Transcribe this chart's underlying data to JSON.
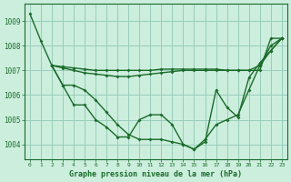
{
  "title": "Graphe pression niveau de la mer (hPa)",
  "background_color": "#cceedd",
  "grid_color": "#99ccbb",
  "line_color": "#1a6b2a",
  "xlim": [
    -0.5,
    23.5
  ],
  "ylim": [
    1003.4,
    1009.7
  ],
  "yticks": [
    1004,
    1005,
    1006,
    1007,
    1008,
    1009
  ],
  "xticks": [
    0,
    1,
    2,
    3,
    4,
    5,
    6,
    7,
    8,
    9,
    10,
    11,
    12,
    13,
    14,
    15,
    16,
    17,
    18,
    19,
    20,
    21,
    22,
    23
  ],
  "series": [
    {
      "x": [
        0,
        1,
        2,
        3,
        4,
        5,
        6,
        7,
        8,
        9,
        10,
        11,
        12,
        13,
        14,
        15,
        16,
        17,
        18,
        19,
        20,
        21,
        22,
        23
      ],
      "y": [
        1009.3,
        1008.2,
        1007.2,
        1006.4,
        1005.6,
        1005.6,
        1005.0,
        1004.7,
        1004.3,
        1004.3,
        1005.0,
        1005.2,
        1005.2,
        1004.8,
        1004.0,
        1003.8,
        1004.2,
        1004.8,
        1005.0,
        1005.2,
        1006.2,
        1007.2,
        1008.0,
        1008.3
      ]
    },
    {
      "x": [
        2,
        3,
        4,
        5,
        6,
        7,
        8,
        9,
        10,
        11,
        12,
        13,
        14,
        15,
        16,
        17,
        18,
        19,
        20,
        21,
        22,
        23
      ],
      "y": [
        1007.2,
        1007.15,
        1007.1,
        1007.05,
        1007.0,
        1007.0,
        1007.0,
        1007.0,
        1007.0,
        1007.0,
        1007.05,
        1007.05,
        1007.05,
        1007.05,
        1007.05,
        1007.05,
        1007.0,
        1007.0,
        1007.0,
        1007.0,
        1008.3,
        1008.3
      ]
    },
    {
      "x": [
        2,
        3,
        4,
        5,
        6,
        7,
        8,
        9,
        10,
        11,
        12,
        13,
        14,
        15,
        16,
        17,
        18,
        19,
        20,
        21,
        22,
        23
      ],
      "y": [
        1007.2,
        1007.1,
        1007.0,
        1006.9,
        1006.85,
        1006.8,
        1006.75,
        1006.75,
        1006.8,
        1006.85,
        1006.9,
        1006.95,
        1007.0,
        1007.0,
        1007.0,
        1007.0,
        1007.0,
        1007.0,
        1007.0,
        1007.2,
        1007.8,
        1008.3
      ]
    },
    {
      "x": [
        2,
        3,
        4,
        5,
        6,
        7,
        8,
        9,
        10,
        11,
        12,
        13,
        14,
        15,
        16,
        17,
        18,
        19,
        20,
        21,
        22,
        23
      ],
      "y": [
        1007.2,
        1006.4,
        1006.4,
        1006.2,
        1005.8,
        1005.3,
        1004.8,
        1004.4,
        1004.2,
        1004.2,
        1004.2,
        1004.1,
        1004.0,
        1003.8,
        1004.1,
        1006.2,
        1005.5,
        1005.1,
        1006.7,
        1007.3,
        1007.8,
        1008.3
      ]
    }
  ]
}
